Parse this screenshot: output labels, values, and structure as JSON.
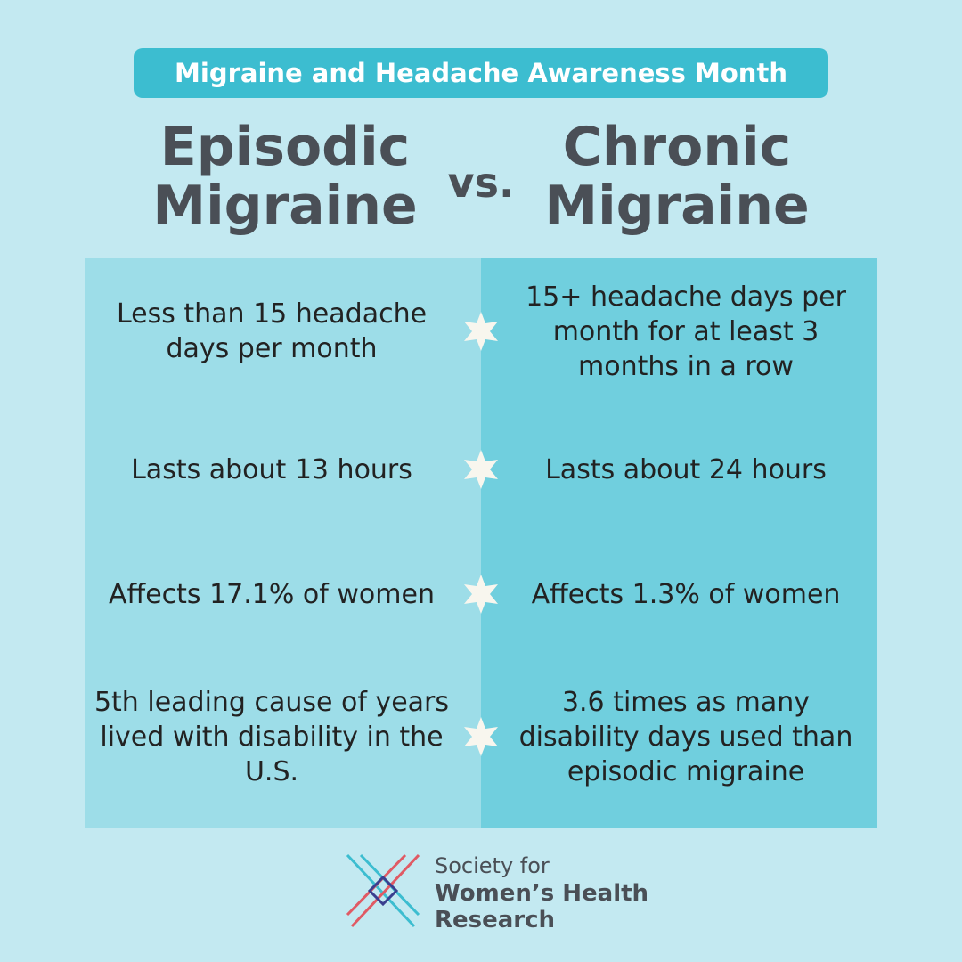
{
  "banner": "Migraine and Headache Awareness Month",
  "left_title": "Episodic Migraine",
  "vs": "vs.",
  "right_title": "Chronic Migraine",
  "rows": [
    {
      "episodic": "Less than 15 headache days per month",
      "chronic": "15+ headache days per month for at least 3 months in a row"
    },
    {
      "episodic": "Lasts about 13 hours",
      "chronic": "Lasts about 24 hours"
    },
    {
      "episodic": "Affects 17.1% of women",
      "chronic": "Affects 1.3% of women"
    },
    {
      "episodic": "5th leading cause of years lived with disability in the U.S.",
      "chronic": "3.6 times as many disability days used than episodic migraine"
    }
  ],
  "logo": {
    "line1": "Society for",
    "line2": "Women’s Health",
    "line3": "Research"
  }
}
